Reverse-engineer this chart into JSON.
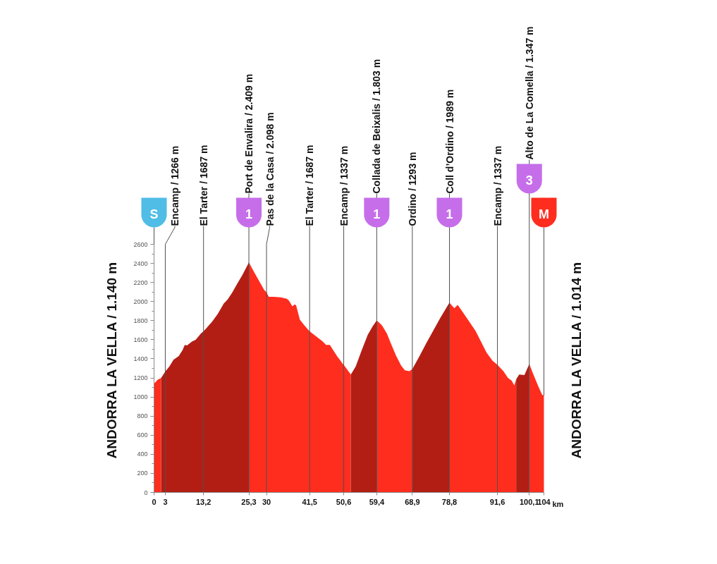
{
  "chart_data": {
    "type": "area",
    "series": [
      {
        "color": "#ff2d1e",
        "x": [
          0,
          0.95,
          1.9
        ],
        "values": [
          1140,
          1180,
          1200
        ]
      },
      {
        "color": "#b21e14",
        "x": [
          1.9,
          3,
          4.1,
          5.2,
          6.6,
          7.6,
          8.2,
          8.8,
          10.1,
          11.1,
          12.6,
          13.2,
          15.5,
          17.0,
          18.6,
          19.6,
          20.8,
          22.1,
          23.6,
          25.3
        ],
        "values": [
          1200,
          1266,
          1320,
          1390,
          1430,
          1490,
          1545,
          1540,
          1580,
          1600,
          1670,
          1687,
          1790,
          1870,
          1980,
          2020,
          2090,
          2180,
          2280,
          2409
        ]
      },
      {
        "color": "#ff2d1e",
        "x": [
          25.3,
          26.8,
          28.4,
          29.4,
          30,
          30.6,
          31.9,
          33.8,
          35.4,
          36.0,
          36.9,
          37.5,
          37.9,
          38.9,
          40.1,
          41.5,
          43.4,
          44.9,
          45.9,
          46.9,
          47.8,
          48.8,
          50.4,
          50.6,
          52.5
        ],
        "values": [
          2409,
          2300,
          2190,
          2120,
          2098,
          2050,
          2050,
          2045,
          2030,
          2010,
          1950,
          1970,
          1960,
          1810,
          1750,
          1687,
          1630,
          1585,
          1545,
          1545,
          1490,
          1430,
          1345,
          1337,
          1235
        ]
      },
      {
        "color": "#b21e14",
        "x": [
          52.5,
          53.8,
          55.4,
          57.0,
          58.3,
          59.4
        ],
        "values": [
          1235,
          1320,
          1490,
          1650,
          1740,
          1803
        ]
      },
      {
        "color": "#ff2d1e",
        "x": [
          59.4,
          60.8,
          62.1,
          63.4,
          64.6,
          65.9,
          66.9,
          68.1,
          68.9
        ],
        "values": [
          1803,
          1750,
          1665,
          1540,
          1430,
          1330,
          1280,
          1270,
          1293
        ]
      },
      {
        "color": "#b21e14",
        "x": [
          68.9,
          70.7,
          72.5,
          74.4,
          76.3,
          77.9,
          78.8
        ],
        "values": [
          1293,
          1420,
          1555,
          1690,
          1825,
          1930,
          1989
        ]
      },
      {
        "color": "#ff2d1e",
        "x": [
          78.8,
          80.1,
          81.0,
          82.0,
          83.9,
          85.8,
          87.4,
          88.7,
          90.3,
          91.6,
          93.2,
          94.4,
          95.4,
          96.1,
          96.6
        ],
        "values": [
          1989,
          1930,
          1965,
          1910,
          1800,
          1690,
          1565,
          1465,
          1380,
          1337,
          1270,
          1200,
          1170,
          1120,
          1185
        ]
      },
      {
        "color": "#b21e14",
        "x": [
          96.6,
          97.4,
          98.8,
          100.1
        ],
        "values": [
          1185,
          1235,
          1230,
          1347
        ]
      },
      {
        "color": "#ff2d1e",
        "x": [
          100.1,
          101.1,
          102.4,
          103.5,
          104
        ],
        "values": [
          1347,
          1245,
          1120,
          1025,
          1014
        ]
      }
    ],
    "xlim": [
      0,
      104
    ],
    "ylim": [
      0,
      2600
    ],
    "xticks": [
      0,
      3,
      {
        "value": 13.2,
        "label": "13,2"
      },
      {
        "value": 25.3,
        "label": "25,3"
      },
      30,
      {
        "value": 41.5,
        "label": "41,5"
      },
      {
        "value": 50.6,
        "label": "50,6"
      },
      {
        "value": 59.4,
        "label": "59,4"
      },
      {
        "value": 68.9,
        "label": "68,9"
      },
      {
        "value": 78.8,
        "label": "78,8"
      },
      {
        "value": 91.6,
        "label": "91,6"
      },
      {
        "value": 100.1,
        "label": "100,1"
      },
      104
    ],
    "yticks": [
      0,
      200,
      400,
      600,
      800,
      1000,
      1200,
      1400,
      1600,
      1800,
      2000,
      2200,
      2400,
      2600,
      {
        "value": 100,
        "label": null
      },
      {
        "value": 300,
        "label": null
      },
      {
        "value": 500,
        "label": null
      },
      {
        "value": 700,
        "label": null
      },
      {
        "value": 900,
        "label": null
      },
      {
        "value": 1100,
        "label": null
      },
      {
        "value": 1300,
        "label": null
      },
      {
        "value": 1500,
        "label": null
      },
      {
        "value": 1700,
        "label": null
      },
      {
        "value": 1900,
        "label": null
      },
      {
        "value": 2100,
        "label": null
      },
      {
        "value": 2300,
        "label": null
      },
      {
        "value": 2500,
        "label": null
      }
    ],
    "xlabel": "km",
    "ref_lines": [
      {
        "axis": "x",
        "value": 3,
        "label": "Encamp / 1266 m",
        "color": "#505050"
      },
      {
        "axis": "x",
        "value": 13.2,
        "label": "El Tarter / 1687 m",
        "color": "#505050"
      },
      {
        "axis": "x",
        "value": 25.3,
        "label": "Port de Envalira / 2.409 m",
        "color": "#505050"
      },
      {
        "axis": "x",
        "value": 30,
        "label": "Pas de la Casa / 2.098 m",
        "color": "#505050"
      },
      {
        "axis": "x",
        "value": 41.5,
        "label": "El Tarter / 1687 m",
        "color": "#505050"
      },
      {
        "axis": "x",
        "value": 50.6,
        "label": "Encamp / 1337 m",
        "color": "#505050"
      },
      {
        "axis": "x",
        "value": 59.4,
        "label": "Collada de Beixalis / 1.803 m",
        "color": "#505050"
      },
      {
        "axis": "x",
        "value": 68.9,
        "label": "Ordino / 1293 m",
        "color": "#505050"
      },
      {
        "axis": "x",
        "value": 78.8,
        "label": "Coll d’Ordino / 1989 m",
        "color": "#505050"
      },
      {
        "axis": "x",
        "value": 91.6,
        "label": "Encamp / 1337 m",
        "color": "#505050"
      },
      {
        "axis": "x",
        "value": 100.1,
        "label": "Alto de La Comella / 1.347 m",
        "color": "#505050"
      }
    ],
    "annotations": [
      "ANDORRA LA VELLA / 1.140 m",
      "ANDORRA LA VELLA / 1.014 m",
      "S",
      "M",
      {
        "text": "1",
        "x": 25.3
      },
      {
        "text": "1",
        "x": 59.4
      },
      {
        "text": "1",
        "x": 78.8
      },
      {
        "text": "3",
        "x": 100.1
      }
    ]
  }
}
